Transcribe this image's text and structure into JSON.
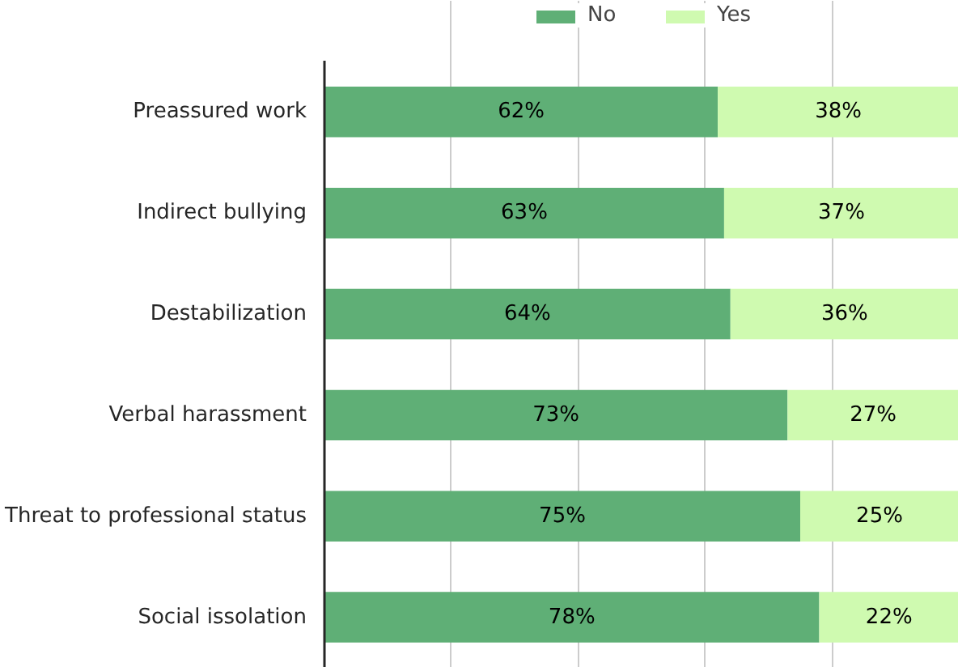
{
  "chart_data": {
    "type": "bar",
    "orientation": "horizontal",
    "stacked": true,
    "categories": [
      "Preassured work",
      "Indirect bullying",
      "Destabilization",
      "Verbal harassment",
      "Threat to professional status",
      "Social issolation"
    ],
    "series": [
      {
        "name": "No",
        "color": "#5faf76",
        "values": [
          62,
          63,
          64,
          73,
          75,
          78
        ],
        "value_labels": [
          "62%",
          "63%",
          "64%",
          "73%",
          "75%",
          "78%"
        ]
      },
      {
        "name": "Yes",
        "color": "#cffab0",
        "values": [
          38,
          37,
          36,
          27,
          25,
          22
        ],
        "value_labels": [
          "38%",
          "37%",
          "36%",
          "27%",
          "25%",
          "22%"
        ]
      }
    ],
    "grid": "x",
    "legend": "top",
    "tick_labels": "y"
  }
}
